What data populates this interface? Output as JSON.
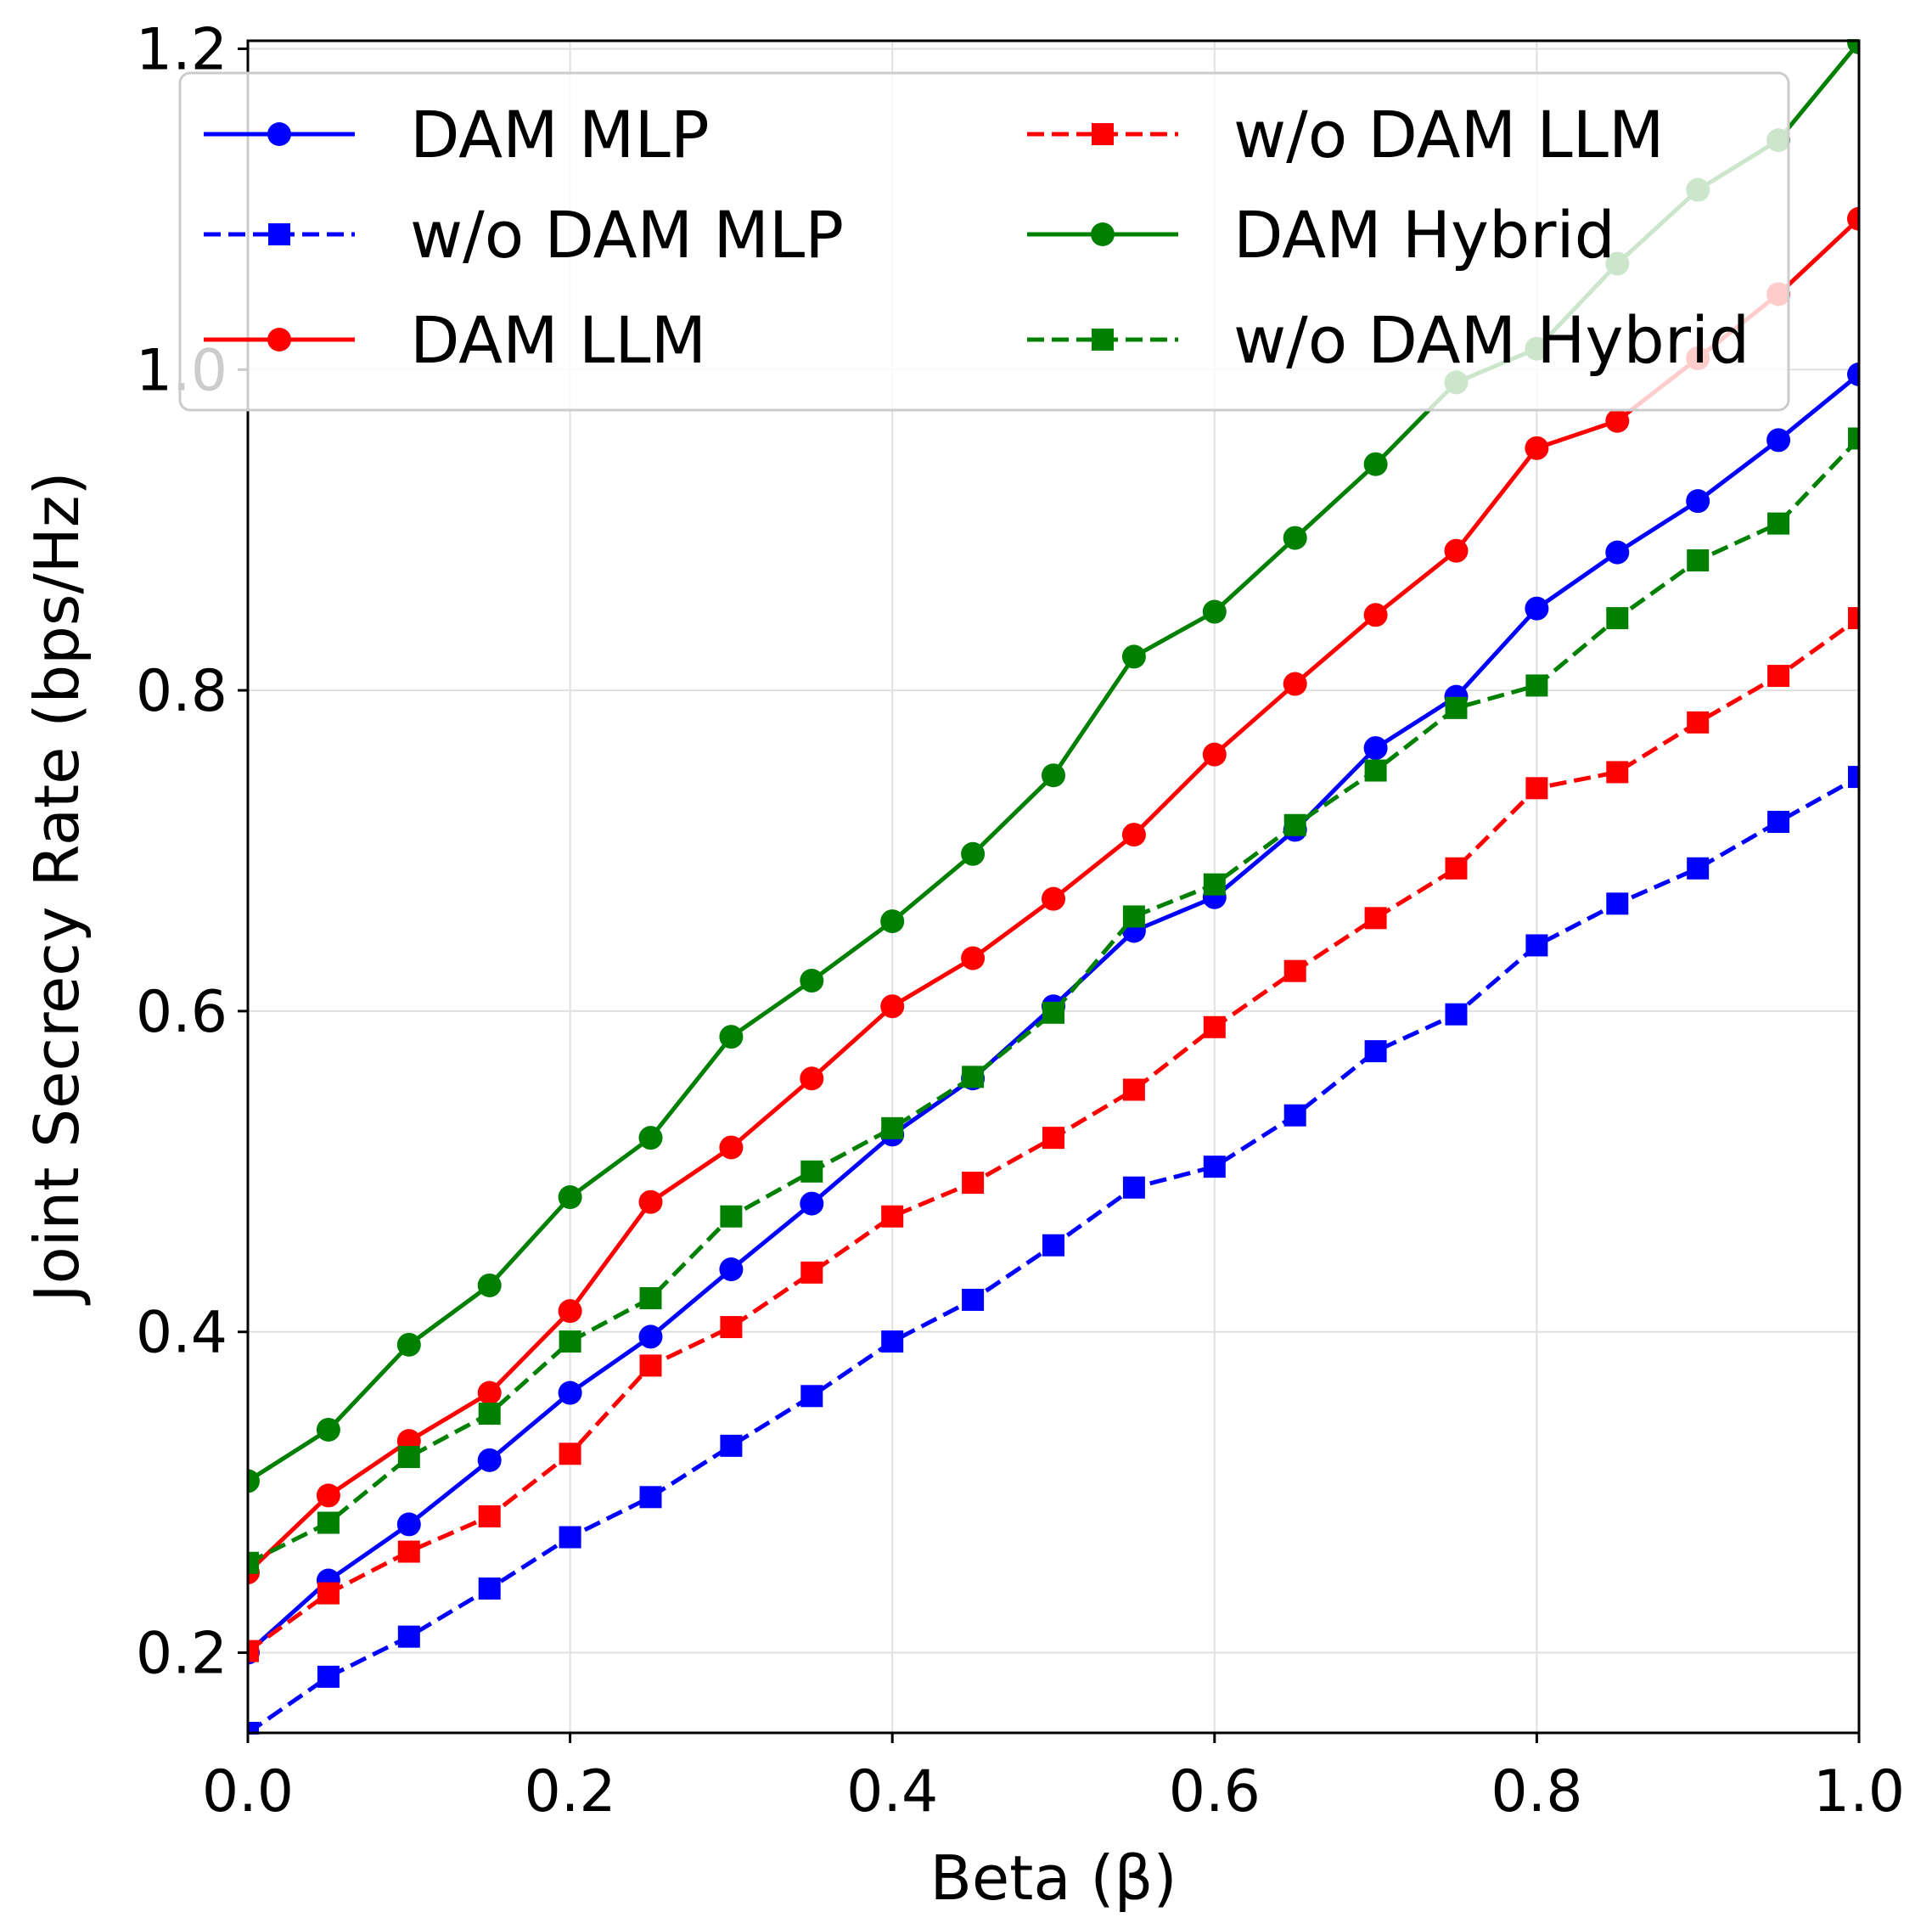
{
  "chart_data": {
    "type": "line",
    "xlabel": "Beta (β)",
    "ylabel": "Joint Secrecy Rate (bps/Hz)",
    "xlim": [
      0.0,
      1.0
    ],
    "ylim": [
      0.15,
      1.205
    ],
    "xticks": [
      "0.0",
      "0.2",
      "0.4",
      "0.6",
      "0.8",
      "1.0"
    ],
    "yticks": [
      "0.2",
      "0.4",
      "0.6",
      "0.8",
      "1.0",
      "1.2"
    ],
    "grid": true,
    "legend_position": "top",
    "x": [
      0.0,
      0.05,
      0.1,
      0.15,
      0.2,
      0.25,
      0.3,
      0.35,
      0.4,
      0.45,
      0.5,
      0.55,
      0.6,
      0.65,
      0.7,
      0.75,
      0.8,
      0.85,
      0.9,
      0.95,
      1.0
    ],
    "series": [
      {
        "name": "DAM MLP",
        "color": "#0000ff",
        "dash": "solid",
        "marker": "circle",
        "values": [
          0.2,
          0.245,
          0.28,
          0.32,
          0.362,
          0.397,
          0.439,
          0.48,
          0.523,
          0.558,
          0.603,
          0.65,
          0.671,
          0.713,
          0.764,
          0.796,
          0.851,
          0.886,
          0.918,
          0.956,
          0.997
        ]
      },
      {
        "name": "w/o DAM MLP",
        "color": "#0000ff",
        "dash": "dashed",
        "marker": "square",
        "values": [
          0.15,
          0.185,
          0.21,
          0.24,
          0.272,
          0.297,
          0.329,
          0.36,
          0.394,
          0.42,
          0.454,
          0.49,
          0.503,
          0.535,
          0.575,
          0.598,
          0.641,
          0.667,
          0.689,
          0.718,
          0.746
        ]
      },
      {
        "name": "DAM LLM",
        "color": "#ff0000",
        "dash": "solid",
        "marker": "circle",
        "values": [
          0.25,
          0.298,
          0.332,
          0.362,
          0.413,
          0.481,
          0.515,
          0.558,
          0.603,
          0.633,
          0.67,
          0.71,
          0.76,
          0.804,
          0.847,
          0.887,
          0.951,
          0.968,
          1.007,
          1.047,
          1.094
        ]
      },
      {
        "name": "w/o DAM LLM",
        "color": "#ff0000",
        "dash": "dashed",
        "marker": "square",
        "values": [
          0.201,
          0.237,
          0.263,
          0.285,
          0.324,
          0.379,
          0.403,
          0.437,
          0.472,
          0.493,
          0.521,
          0.551,
          0.59,
          0.625,
          0.658,
          0.689,
          0.739,
          0.749,
          0.78,
          0.809,
          0.845
        ]
      },
      {
        "name": "DAM Hybrid",
        "color": "#008000",
        "dash": "solid",
        "marker": "circle",
        "values": [
          0.307,
          0.339,
          0.392,
          0.429,
          0.484,
          0.521,
          0.584,
          0.619,
          0.656,
          0.698,
          0.747,
          0.821,
          0.849,
          0.895,
          0.941,
          0.992,
          1.013,
          1.066,
          1.112,
          1.143,
          1.204
        ]
      },
      {
        "name": "w/o DAM Hybrid",
        "color": "#008000",
        "dash": "dashed",
        "marker": "square",
        "values": [
          0.256,
          0.281,
          0.322,
          0.349,
          0.394,
          0.421,
          0.472,
          0.5,
          0.527,
          0.559,
          0.599,
          0.659,
          0.679,
          0.716,
          0.75,
          0.789,
          0.803,
          0.845,
          0.881,
          0.904,
          0.957
        ]
      }
    ]
  }
}
